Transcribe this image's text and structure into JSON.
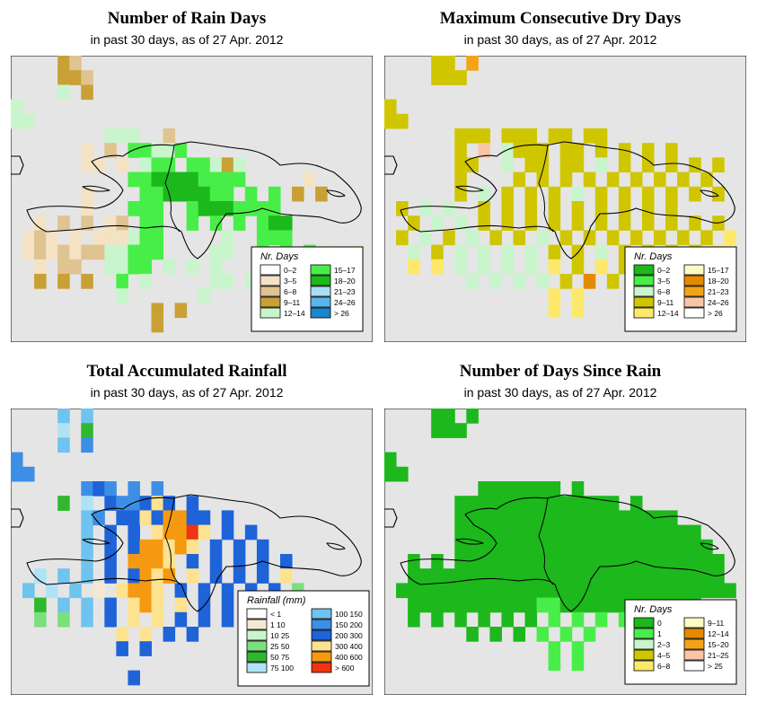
{
  "panels": [
    {
      "title": "Number of Rain Days",
      "subtitle": "in past 30 days, as of  27 Apr. 2012",
      "legend": {
        "title": "Nr. Days",
        "items": [
          {
            "label": "0–2",
            "color": "#ffffff"
          },
          {
            "label": "3–5",
            "color": "#f3e2c4"
          },
          {
            "label": "6–8",
            "color": "#dfc391"
          },
          {
            "label": "9–11",
            "color": "#c9a035"
          },
          {
            "label": "12–14",
            "color": "#c8f5cc"
          },
          {
            "label": "15–17",
            "color": "#48ee48"
          },
          {
            "label": "18–20",
            "color": "#1cb81c"
          },
          {
            "label": "21–23",
            "color": "#a7e0f6"
          },
          {
            "label": "24–26",
            "color": "#5ab5ec"
          },
          {
            "label": "> 26",
            "color": "#1a86cc"
          }
        ]
      }
    },
    {
      "title": "Maximum Consecutive Dry Days",
      "subtitle": "in past 30 days, as of  27 Apr. 2012",
      "legend": {
        "title": "Nr. Days",
        "items": [
          {
            "label": "0–2",
            "color": "#1cb81c"
          },
          {
            "label": "3–5",
            "color": "#48ee48"
          },
          {
            "label": "6–8",
            "color": "#c8f5cc"
          },
          {
            "label": "9–11",
            "color": "#d0c600"
          },
          {
            "label": "12–14",
            "color": "#fde86a"
          },
          {
            "label": "15–17",
            "color": "#fdfac4"
          },
          {
            "label": "18–20",
            "color": "#e58a00"
          },
          {
            "label": "21–23",
            "color": "#f4a318"
          },
          {
            "label": "24–26",
            "color": "#f8c6a6"
          },
          {
            "label": "> 26",
            "color": "#ffffff"
          }
        ]
      }
    },
    {
      "title": "Total Accumulated Rainfall",
      "subtitle": "in past 30 days, as of  27 Apr. 2012",
      "legend": {
        "title": "Rainfall (mm)",
        "items": [
          {
            "label": "< 1",
            "color": "#ffffff"
          },
          {
            "label": "1   10",
            "color": "#f4e8d2"
          },
          {
            "label": "10   25",
            "color": "#c8f5cc"
          },
          {
            "label": "25   50",
            "color": "#7be07b"
          },
          {
            "label": "50   75",
            "color": "#2fb82f"
          },
          {
            "label": "75   100",
            "color": "#aee3f5"
          },
          {
            "label": "100  150",
            "color": "#6fc3ef"
          },
          {
            "label": "150  200",
            "color": "#3d8fe6"
          },
          {
            "label": "200  300",
            "color": "#1e63d8"
          },
          {
            "label": "300  400",
            "color": "#fde28f"
          },
          {
            "label": "400  600",
            "color": "#f59a10"
          },
          {
            "label": "> 600",
            "color": "#ee3410"
          }
        ]
      }
    },
    {
      "title": "Number of Days Since Rain",
      "subtitle": "in past 30 days, as of  27 Apr. 2012",
      "legend": {
        "title": "Nr. Days",
        "items": [
          {
            "label": "0",
            "color": "#1cb81c"
          },
          {
            "label": "1",
            "color": "#48ee48"
          },
          {
            "label": "2–3",
            "color": "#c8f5cc"
          },
          {
            "label": "4–5",
            "color": "#d0c600"
          },
          {
            "label": "6–8",
            "color": "#fde86a"
          },
          {
            "label": "9–11",
            "color": "#fdfac4"
          },
          {
            "label": "12–14",
            "color": "#e58a00"
          },
          {
            "label": "15–20",
            "color": "#f4a318"
          },
          {
            "label": "21–25",
            "color": "#f8c6a6"
          },
          {
            "label": "> 25",
            "color": "#ffffff"
          }
        ]
      }
    }
  ]
}
